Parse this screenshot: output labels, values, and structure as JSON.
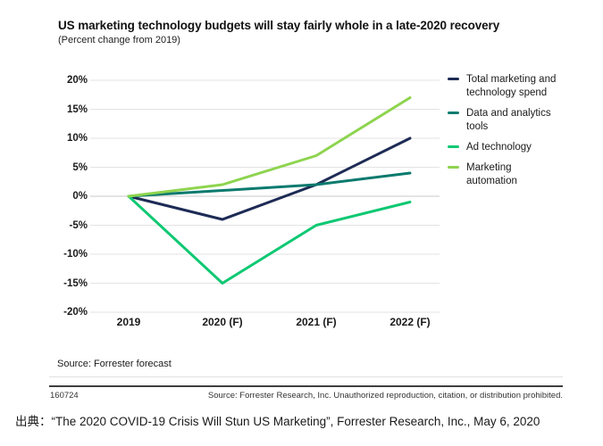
{
  "figure": {
    "title": "US marketing technology budgets will stay fairly whole in a late-2020 recovery",
    "subtitle": "(Percent change from 2019)",
    "source_note": "Source: Forrester forecast",
    "report_id": "160724",
    "copyright": "Source: Forrester Research, Inc. Unauthorized reproduction, citation, or distribution prohibited."
  },
  "caption": "出典：“The 2020 COVID-19 Crisis Will Stun US Marketing”, Forrester Research, Inc., May 6, 2020",
  "chart_data": {
    "type": "line",
    "title": "US marketing technology budgets will stay fairly whole in a late-2020 recovery",
    "subtitle": "(Percent change from 2019)",
    "categories": [
      "2019",
      "2020 (F)",
      "2021 (F)",
      "2022 (F)"
    ],
    "series": [
      {
        "name": "Total marketing and technology spend",
        "legend_label": "Total marketing and\ntechnology spend",
        "color": "#1d2b55",
        "values": [
          0,
          -4,
          2,
          10
        ]
      },
      {
        "name": "Data and analytics tools",
        "legend_label": "Data and analytics\ntools",
        "color": "#0a7a6e",
        "values": [
          0,
          1,
          2,
          4
        ]
      },
      {
        "name": "Ad technology",
        "legend_label": "Ad technology",
        "color": "#0fc873",
        "values": [
          0,
          -15,
          -5,
          -1
        ]
      },
      {
        "name": "Marketing automation",
        "legend_label": "Marketing\nautomation",
        "color": "#8ed44f",
        "values": [
          0,
          2,
          7,
          17
        ]
      }
    ],
    "yticks": [
      20,
      15,
      10,
      5,
      0,
      -5,
      -10,
      -15,
      -20
    ],
    "ytick_suffix": "%",
    "ylim": [
      -20,
      20
    ],
    "grid": true,
    "legend_position": "right",
    "colors": {
      "grid": "#e3e3e3",
      "zero_line": "#c9c9c9"
    }
  }
}
